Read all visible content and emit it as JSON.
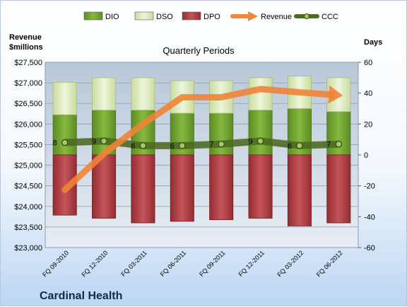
{
  "chart_data": {
    "type": "bar",
    "title": "Quarterly Periods",
    "company": "Cardinal Health",
    "y_left_label_line1": "Revenue",
    "y_left_label_line2": "$millions",
    "y_right_label": "Days",
    "y_left_lim": [
      23000,
      27500
    ],
    "y_left_ticks": [
      "$23,000",
      "$23,500",
      "$24,000",
      "$24,500",
      "$25,000",
      "$25,500",
      "$26,000",
      "$26,500",
      "$27,000",
      "$27,500"
    ],
    "y_left_tick_values": [
      23000,
      23500,
      24000,
      24500,
      25000,
      25500,
      26000,
      26500,
      27000,
      27500
    ],
    "y_right_lim": [
      -60,
      60
    ],
    "y_right_ticks": [
      "-60",
      "-40",
      "-20",
      "0",
      "20",
      "40",
      "60"
    ],
    "y_right_tick_values": [
      -60,
      -40,
      -20,
      0,
      20,
      40,
      60
    ],
    "categories": [
      "FQ 09-2010",
      "FQ 12-2010",
      "FQ 03-2011",
      "FQ 06-2011",
      "FQ 09-2011",
      "FQ 12-2011",
      "FQ 03-2012",
      "FQ 06-2012"
    ],
    "grid": true,
    "legend_placement": "top",
    "legend": [
      {
        "label": "DIO",
        "kind": "bar",
        "color": "#77a832"
      },
      {
        "label": "DSO",
        "kind": "bar",
        "color": "#dbe9b7"
      },
      {
        "label": "DPO",
        "kind": "bar",
        "color": "#b5444a"
      },
      {
        "label": "Revenue",
        "kind": "arrow",
        "color": "#f0873a"
      },
      {
        "label": "CCC",
        "kind": "line",
        "color": "#4e6b25"
      }
    ],
    "series": [
      {
        "name": "DIO",
        "axis": "right",
        "values": [
          26,
          29,
          29,
          27,
          27,
          29,
          30,
          28
        ]
      },
      {
        "name": "DSO",
        "axis": "right",
        "values": [
          21,
          21,
          21,
          21,
          21,
          21,
          21,
          22
        ]
      },
      {
        "name": "DPO",
        "axis": "right",
        "values": [
          -39,
          -41,
          -44,
          -43,
          -42,
          -41,
          -46,
          -44
        ]
      },
      {
        "name": "Revenue",
        "axis": "left",
        "values": [
          24400,
          25280,
          26000,
          26650,
          26650,
          26850,
          26770,
          26700
        ]
      },
      {
        "name": "CCC",
        "axis": "right",
        "values": [
          8,
          9,
          6,
          6,
          7,
          9,
          6,
          7
        ],
        "labels": [
          "8",
          "9",
          "6",
          "6",
          "7",
          "9",
          "6",
          "7"
        ]
      }
    ]
  }
}
